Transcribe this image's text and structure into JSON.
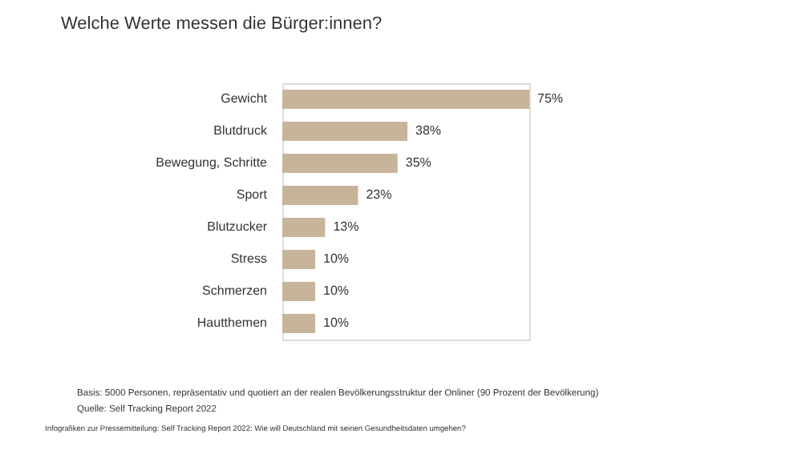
{
  "chart_data": {
    "type": "bar",
    "orientation": "horizontal",
    "title": "Welche Werte messen die Bürger:innen?",
    "categories": [
      "Gewicht",
      "Blutdruck",
      "Bewegung, Schritte",
      "Sport",
      "Blutzucker",
      "Stress",
      "Schmerzen",
      "Hautthemen"
    ],
    "values": [
      75,
      38,
      35,
      23,
      13,
      10,
      10,
      10
    ],
    "value_labels": [
      "75%",
      "38%",
      "35%",
      "23%",
      "13%",
      "10%",
      "10%",
      "10%"
    ],
    "color": "#c8b49a",
    "annotations": [
      "Basis: 5000 Personen, repräsentativ und quotiert an der realen Bevölkerungsstruktur der Onliner (90 Prozent der Bevölkerung)",
      "Quelle: Self Tracking Report 2022",
      "Infografiken zur Pressemitteilung: Self Tracking Report 2022: Wie will Deutschland mit seinen Gesundheitsdaten umgehen?"
    ]
  }
}
